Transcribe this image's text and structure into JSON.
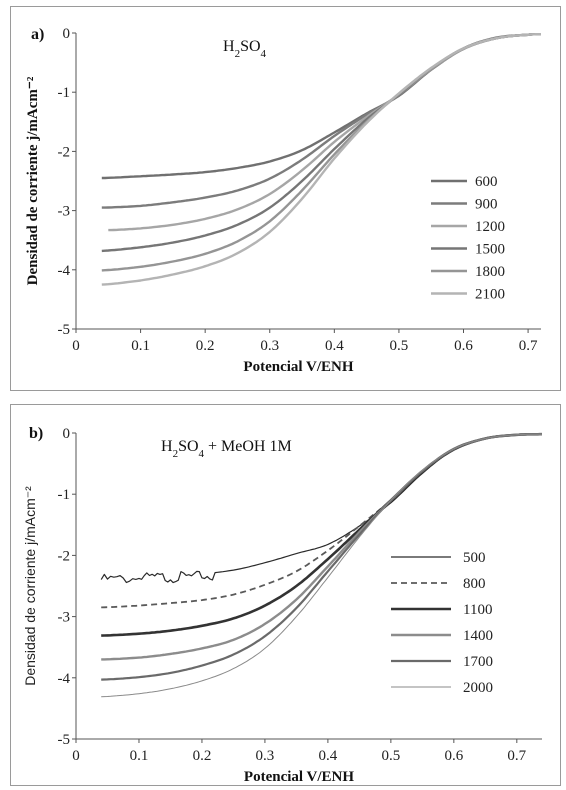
{
  "chart_data": [
    {
      "type": "line",
      "panel_label": "a)",
      "annotation": "H2SO4",
      "xlabel": "Potencial V/ENH",
      "ylabel": "Densidad de corriente j/mAcm⁻²",
      "xlim": [
        0,
        0.72
      ],
      "ylim": [
        -5,
        0
      ],
      "xticks": [
        "0",
        "0.1",
        "0.2",
        "0.3",
        "0.4",
        "0.5",
        "0.6",
        "0.7"
      ],
      "yticks": [
        "0",
        "-1",
        "-2",
        "-3",
        "-4",
        "-5"
      ],
      "legend_position": "right",
      "series": [
        {
          "name": "600",
          "color": "#707070",
          "x": [
            0.04,
            0.1,
            0.15,
            0.2,
            0.25,
            0.3,
            0.35,
            0.4,
            0.45,
            0.5,
            0.55,
            0.6,
            0.65,
            0.7,
            0.72
          ],
          "y": [
            -2.45,
            -2.42,
            -2.39,
            -2.35,
            -2.28,
            -2.17,
            -1.98,
            -1.68,
            -1.36,
            -1.06,
            -0.62,
            -0.26,
            -0.08,
            -0.03,
            -0.02
          ]
        },
        {
          "name": "900",
          "color": "#7c7c7c",
          "x": [
            0.04,
            0.1,
            0.15,
            0.2,
            0.25,
            0.3,
            0.35,
            0.4,
            0.45,
            0.5,
            0.55,
            0.6,
            0.65,
            0.7,
            0.72
          ],
          "y": [
            -2.95,
            -2.92,
            -2.86,
            -2.78,
            -2.66,
            -2.46,
            -2.14,
            -1.74,
            -1.38,
            -1.05,
            -0.62,
            -0.27,
            -0.09,
            -0.03,
            -0.02
          ]
        },
        {
          "name": "1200",
          "color": "#a6a6a6",
          "x": [
            0.05,
            0.1,
            0.15,
            0.2,
            0.25,
            0.3,
            0.35,
            0.4,
            0.45,
            0.5,
            0.55,
            0.6,
            0.65,
            0.7,
            0.72
          ],
          "y": [
            -3.33,
            -3.3,
            -3.24,
            -3.14,
            -2.98,
            -2.72,
            -2.32,
            -1.84,
            -1.42,
            -1.04,
            -0.61,
            -0.27,
            -0.09,
            -0.03,
            -0.02
          ]
        },
        {
          "name": "1500",
          "color": "#767676",
          "x": [
            0.04,
            0.1,
            0.15,
            0.2,
            0.25,
            0.3,
            0.35,
            0.4,
            0.45,
            0.5,
            0.55,
            0.6,
            0.65,
            0.7,
            0.72
          ],
          "y": [
            -3.68,
            -3.62,
            -3.54,
            -3.42,
            -3.24,
            -2.95,
            -2.5,
            -1.96,
            -1.46,
            -1.04,
            -0.6,
            -0.26,
            -0.09,
            -0.03,
            -0.02
          ]
        },
        {
          "name": "1800",
          "color": "#959595",
          "x": [
            0.04,
            0.1,
            0.15,
            0.2,
            0.25,
            0.3,
            0.35,
            0.4,
            0.45,
            0.5,
            0.55,
            0.6,
            0.65,
            0.7,
            0.72
          ],
          "y": [
            -4.01,
            -3.95,
            -3.86,
            -3.73,
            -3.52,
            -3.18,
            -2.66,
            -2.05,
            -1.5,
            -1.03,
            -0.6,
            -0.26,
            -0.09,
            -0.03,
            -0.02
          ]
        },
        {
          "name": "2100",
          "color": "#b4b4b4",
          "x": [
            0.04,
            0.1,
            0.15,
            0.2,
            0.25,
            0.3,
            0.35,
            0.4,
            0.45,
            0.5,
            0.55,
            0.6,
            0.65,
            0.7,
            0.72
          ],
          "y": [
            -4.25,
            -4.18,
            -4.08,
            -3.94,
            -3.72,
            -3.36,
            -2.8,
            -2.12,
            -1.52,
            -1.02,
            -0.59,
            -0.26,
            -0.09,
            -0.03,
            -0.02
          ]
        }
      ]
    },
    {
      "type": "line",
      "panel_label": "b)",
      "annotation": "H2SO4 + MeOH 1M",
      "xlabel": "Potencial V/ENH",
      "ylabel": "Densidad de corriente j/mAcm⁻²",
      "xlim": [
        0,
        0.74
      ],
      "ylim": [
        -5,
        0
      ],
      "xticks": [
        "0",
        "0.1",
        "0.2",
        "0.3",
        "0.4",
        "0.5",
        "0.6",
        "0.7"
      ],
      "yticks": [
        "0",
        "-1",
        "-2",
        "-3",
        "-4",
        "-5"
      ],
      "legend_position": "right",
      "series": [
        {
          "name": "500",
          "color": "#2a2a2a",
          "dash": "",
          "width": 1.2,
          "noise": true,
          "x": [
            0.04,
            0.1,
            0.15,
            0.2,
            0.25,
            0.3,
            0.35,
            0.4,
            0.45,
            0.5,
            0.55,
            0.6,
            0.65,
            0.7,
            0.74
          ],
          "y": [
            -2.35,
            -2.33,
            -2.31,
            -2.3,
            -2.24,
            -2.12,
            -1.97,
            -1.82,
            -1.52,
            -1.14,
            -0.66,
            -0.27,
            -0.09,
            -0.03,
            -0.02
          ]
        },
        {
          "name": "800",
          "color": "#5a5a5a",
          "dash": "6,4",
          "width": 1.8,
          "noise": false,
          "x": [
            0.04,
            0.1,
            0.15,
            0.2,
            0.25,
            0.3,
            0.35,
            0.4,
            0.45,
            0.5,
            0.55,
            0.6,
            0.65,
            0.7,
            0.74
          ],
          "y": [
            -2.85,
            -2.82,
            -2.78,
            -2.73,
            -2.64,
            -2.48,
            -2.26,
            -1.92,
            -1.52,
            -1.1,
            -0.64,
            -0.27,
            -0.09,
            -0.03,
            -0.02
          ]
        },
        {
          "name": "1100",
          "color": "#333333",
          "dash": "",
          "width": 2.6,
          "noise": false,
          "x": [
            0.04,
            0.1,
            0.15,
            0.2,
            0.25,
            0.3,
            0.35,
            0.4,
            0.45,
            0.5,
            0.55,
            0.6,
            0.65,
            0.7,
            0.74
          ],
          "y": [
            -3.31,
            -3.28,
            -3.23,
            -3.15,
            -3.03,
            -2.82,
            -2.5,
            -2.06,
            -1.58,
            -1.1,
            -0.63,
            -0.27,
            -0.09,
            -0.03,
            -0.02
          ]
        },
        {
          "name": "1400",
          "color": "#8c8c8c",
          "dash": "",
          "width": 2.4,
          "noise": false,
          "x": [
            0.04,
            0.1,
            0.15,
            0.2,
            0.25,
            0.3,
            0.35,
            0.4,
            0.45,
            0.5,
            0.55,
            0.6,
            0.65,
            0.7,
            0.74
          ],
          "y": [
            -3.7,
            -3.67,
            -3.61,
            -3.52,
            -3.38,
            -3.12,
            -2.72,
            -2.18,
            -1.62,
            -1.1,
            -0.62,
            -0.26,
            -0.09,
            -0.03,
            -0.02
          ]
        },
        {
          "name": "1700",
          "color": "#6a6a6a",
          "dash": "",
          "width": 2.2,
          "noise": false,
          "x": [
            0.04,
            0.1,
            0.15,
            0.2,
            0.25,
            0.3,
            0.35,
            0.4,
            0.45,
            0.5,
            0.55,
            0.6,
            0.65,
            0.7,
            0.74
          ],
          "y": [
            -4.03,
            -3.99,
            -3.92,
            -3.8,
            -3.62,
            -3.32,
            -2.86,
            -2.26,
            -1.66,
            -1.1,
            -0.62,
            -0.26,
            -0.09,
            -0.03,
            -0.02
          ]
        },
        {
          "name": "2000",
          "color": "#8a8a8a",
          "dash": "",
          "width": 1.0,
          "noise": false,
          "x": [
            0.04,
            0.1,
            0.15,
            0.2,
            0.25,
            0.3,
            0.35,
            0.4,
            0.45,
            0.5,
            0.55,
            0.6,
            0.65,
            0.7,
            0.74
          ],
          "y": [
            -4.31,
            -4.26,
            -4.18,
            -4.05,
            -3.85,
            -3.52,
            -3.0,
            -2.36,
            -1.7,
            -1.1,
            -0.61,
            -0.26,
            -0.09,
            -0.03,
            -0.02
          ]
        }
      ]
    }
  ]
}
